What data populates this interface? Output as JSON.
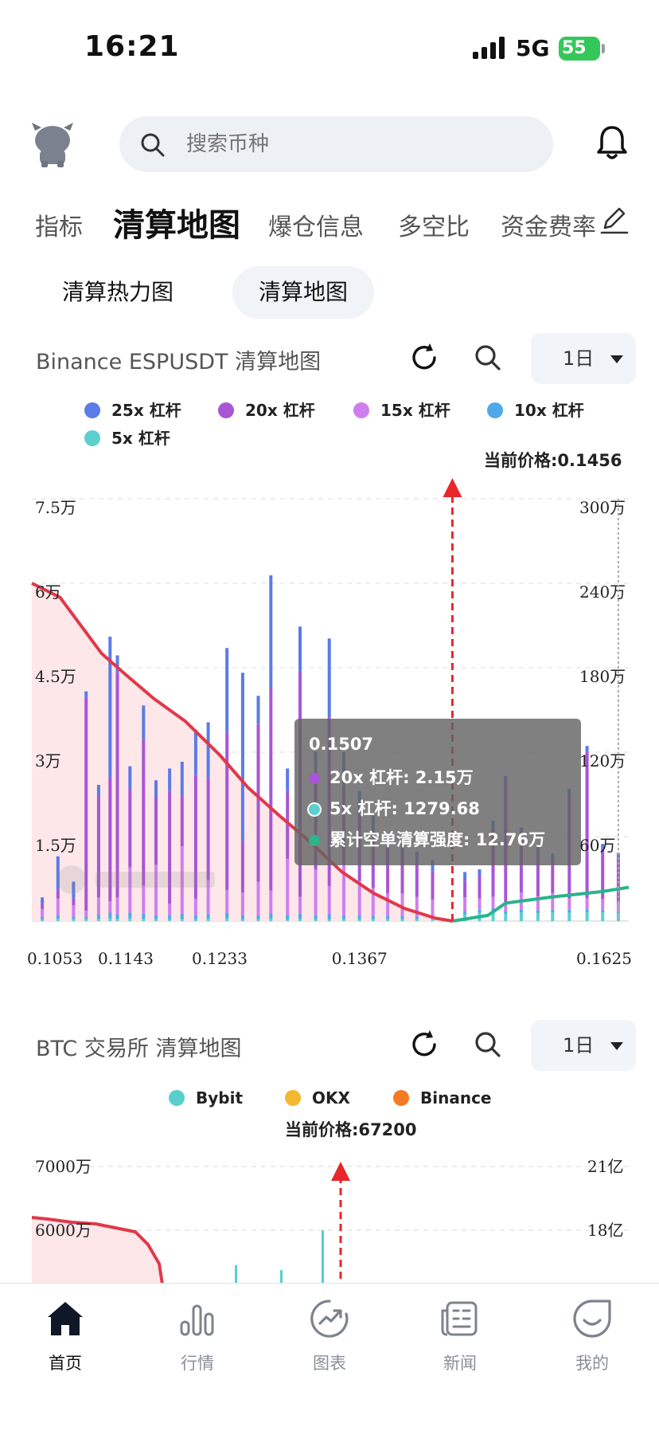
{
  "status_bar": {
    "time": "16:21",
    "network": "5G",
    "battery": "55"
  },
  "search": {
    "placeholder": "搜索币种"
  },
  "top_tabs": [
    {
      "label": "指标"
    },
    {
      "label": "清算地图",
      "active": true
    },
    {
      "label": "爆仓信息"
    },
    {
      "label": "多空比"
    },
    {
      "label": "资金费率"
    }
  ],
  "sub_tabs": [
    {
      "label": "清算热力图"
    },
    {
      "label": "清算地图",
      "active": true
    }
  ],
  "chart1": {
    "title": "Binance ESPUSDT 清算地图",
    "period": "1日",
    "legend": [
      {
        "name": "25x 杠杆",
        "color": "#5b7be8"
      },
      {
        "name": "20x 杠杆",
        "color": "#a855d6"
      },
      {
        "name": "15x 杠杆",
        "color": "#cf7ef0"
      },
      {
        "name": "10x 杠杆",
        "color": "#4fa9e8"
      },
      {
        "name": "5x 杠杆",
        "color": "#5ccfcf"
      }
    ],
    "current_price_label": "当前价格:0.1456",
    "tooltip": {
      "title": "0.1507",
      "rows": [
        {
          "text": "20x 杠杆: 2.15万",
          "color": "#a855d6"
        },
        {
          "text": "5x 杠杆: 1279.68",
          "color": "#5ccfcf"
        },
        {
          "text": "累计空单清算强度: 12.76万",
          "color": "#2db38a"
        }
      ]
    }
  },
  "chart_data": [
    {
      "type": "bar",
      "title": "Binance ESPUSDT 清算地图",
      "x_ticks": [
        "0.1053",
        "0.1143",
        "0.1233",
        "0.1367",
        "0.1625"
      ],
      "y_left_ticks": [
        "1.5万",
        "3万",
        "4.5万",
        "6万",
        "7.5万"
      ],
      "y_right_ticks": [
        "60万",
        "120万",
        "180万",
        "240万",
        "300万"
      ],
      "ylim_left": [
        0,
        75000
      ],
      "ylim_right": [
        0,
        3000000
      ],
      "xlim": [
        0.1053,
        0.1625
      ],
      "current_price": 0.1456,
      "series": [
        {
          "name": "25x 杠杆",
          "color": "#5b7be8"
        },
        {
          "name": "20x 杠杆",
          "color": "#a855d6"
        },
        {
          "name": "15x 杠杆",
          "color": "#cf7ef0"
        },
        {
          "name": "10x 杠杆",
          "color": "#4fa9e8"
        },
        {
          "name": "5x 杠杆",
          "color": "#5ccfcf"
        }
      ],
      "bars": [
        {
          "x": 0.1063,
          "v": [
            1200,
            800,
            1500,
            400,
            300
          ]
        },
        {
          "x": 0.1078,
          "v": [
            6000,
            1500,
            3000,
            600,
            400
          ]
        },
        {
          "x": 0.1093,
          "v": [
            3000,
            1200,
            2000,
            500,
            300
          ]
        },
        {
          "x": 0.1105,
          "v": [
            1000,
            38000,
            1000,
            500,
            300
          ]
        },
        {
          "x": 0.1117,
          "v": [
            2000,
            18000,
            3000,
            800,
            400
          ]
        },
        {
          "x": 0.1128,
          "v": [
            25000,
            22000,
            2000,
            1000,
            500
          ]
        },
        {
          "x": 0.1135,
          "v": [
            3000,
            40000,
            3000,
            800,
            400
          ]
        },
        {
          "x": 0.1147,
          "v": [
            4000,
            14000,
            8000,
            1000,
            500
          ]
        },
        {
          "x": 0.116,
          "v": [
            6000,
            26000,
            5000,
            900,
            400
          ]
        },
        {
          "x": 0.1172,
          "v": [
            3000,
            12000,
            9000,
            700,
            300
          ]
        },
        {
          "x": 0.1185,
          "v": [
            4000,
            20000,
            2000,
            800,
            300
          ]
        },
        {
          "x": 0.1197,
          "v": [
            6000,
            9000,
            12000,
            900,
            400
          ]
        },
        {
          "x": 0.121,
          "v": [
            8000,
            22000,
            3000,
            700,
            300
          ]
        },
        {
          "x": 0.1222,
          "v": [
            10000,
            18000,
            6000,
            900,
            400
          ]
        },
        {
          "x": 0.124,
          "v": [
            15000,
            28000,
            4000,
            1000,
            500
          ]
        },
        {
          "x": 0.1255,
          "v": [
            30000,
            9000,
            4000,
            800,
            300
          ]
        },
        {
          "x": 0.127,
          "v": [
            5000,
            28000,
            6000,
            700,
            300
          ]
        },
        {
          "x": 0.1282,
          "v": [
            20000,
            36000,
            4000,
            1000,
            400
          ]
        },
        {
          "x": 0.1298,
          "v": [
            4000,
            12000,
            10000,
            800,
            300
          ]
        },
        {
          "x": 0.131,
          "v": [
            8000,
            40000,
            3000,
            900,
            400
          ]
        },
        {
          "x": 0.1325,
          "v": [
            5000,
            16000,
            8000,
            800,
            300
          ]
        },
        {
          "x": 0.1338,
          "v": [
            14000,
            30000,
            5000,
            900,
            300
          ]
        },
        {
          "x": 0.1352,
          "v": [
            6000,
            14000,
            9000,
            700,
            300
          ]
        },
        {
          "x": 0.1367,
          "v": [
            4000,
            12000,
            6000,
            800,
            300
          ]
        },
        {
          "x": 0.138,
          "v": [
            3000,
            10000,
            5000,
            600,
            300
          ]
        },
        {
          "x": 0.1394,
          "v": [
            2500,
            8000,
            4000,
            600,
            300
          ]
        },
        {
          "x": 0.1408,
          "v": [
            2000,
            7000,
            4000,
            600,
            300
          ]
        },
        {
          "x": 0.1422,
          "v": [
            2000,
            6000,
            3500,
            500,
            300
          ]
        },
        {
          "x": 0.1437,
          "v": [
            2000,
            5000,
            3000,
            500,
            300
          ]
        },
        {
          "x": 0.1468,
          "v": [
            1500,
            3000,
            2500,
            500,
            1200
          ]
        },
        {
          "x": 0.1482,
          "v": [
            1200,
            4000,
            2000,
            500,
            1500
          ]
        },
        {
          "x": 0.1495,
          "v": [
            1500,
            12000,
            2000,
            500,
            1800
          ]
        },
        {
          "x": 0.1507,
          "v": [
            1000,
            21500,
            1500,
            500,
            1280
          ]
        },
        {
          "x": 0.1522,
          "v": [
            1500,
            10000,
            3000,
            600,
            1500
          ]
        },
        {
          "x": 0.1538,
          "v": [
            1200,
            8000,
            2500,
            500,
            1400
          ]
        },
        {
          "x": 0.1552,
          "v": [
            1000,
            6000,
            3000,
            500,
            1500
          ]
        },
        {
          "x": 0.1568,
          "v": [
            1500,
            18000,
            2000,
            500,
            1500
          ]
        },
        {
          "x": 0.1585,
          "v": [
            1000,
            26000,
            2000,
            500,
            1600
          ]
        },
        {
          "x": 0.16,
          "v": [
            800,
            9000,
            2000,
            400,
            1500
          ]
        },
        {
          "x": 0.1615,
          "v": [
            800,
            8000,
            1500,
            400,
            1400
          ]
        }
      ],
      "cumulative_long": [
        [
          0.1053,
          2400000
        ],
        [
          0.108,
          2300000
        ],
        [
          0.11,
          2100000
        ],
        [
          0.112,
          1900000
        ],
        [
          0.1143,
          1750000
        ],
        [
          0.117,
          1580000
        ],
        [
          0.12,
          1420000
        ],
        [
          0.1233,
          1180000
        ],
        [
          0.126,
          950000
        ],
        [
          0.129,
          750000
        ],
        [
          0.132,
          560000
        ],
        [
          0.135,
          350000
        ],
        [
          0.138,
          200000
        ],
        [
          0.141,
          90000
        ],
        [
          0.144,
          20000
        ],
        [
          0.1456,
          0
        ]
      ],
      "cumulative_short": [
        [
          0.1456,
          0
        ],
        [
          0.149,
          40000
        ],
        [
          0.1507,
          127600
        ],
        [
          0.155,
          170000
        ],
        [
          0.16,
          210000
        ],
        [
          0.1625,
          240000
        ]
      ]
    },
    {
      "type": "bar",
      "title": "BTC 交易所 清算地图",
      "series": [
        {
          "name": "Bybit",
          "color": "#57cfcf"
        },
        {
          "name": "OKX",
          "color": "#f4b731"
        },
        {
          "name": "Binance",
          "color": "#f47a24"
        }
      ],
      "y_left_ticks": [
        "6000万",
        "7000万"
      ],
      "y_right_ticks": [
        "18亿",
        "21亿"
      ],
      "current_price": 67200
    }
  ],
  "chart2": {
    "title": "BTC 交易所 清算地图",
    "period": "1日",
    "legend": [
      {
        "name": "Bybit",
        "color": "#57cfcf"
      },
      {
        "name": "OKX",
        "color": "#f4b731"
      },
      {
        "name": "Binance",
        "color": "#f47a24"
      }
    ],
    "current_price_label": "当前价格:67200"
  },
  "bottom_nav": [
    {
      "label": "首页",
      "active": true
    },
    {
      "label": "行情"
    },
    {
      "label": "图表"
    },
    {
      "label": "新闻"
    },
    {
      "label": "我的"
    }
  ],
  "colors": {
    "long_line": "#e0394a",
    "short_line": "#2bb38c",
    "long_fill": "#fde7e9",
    "marker": "#e8262c"
  }
}
